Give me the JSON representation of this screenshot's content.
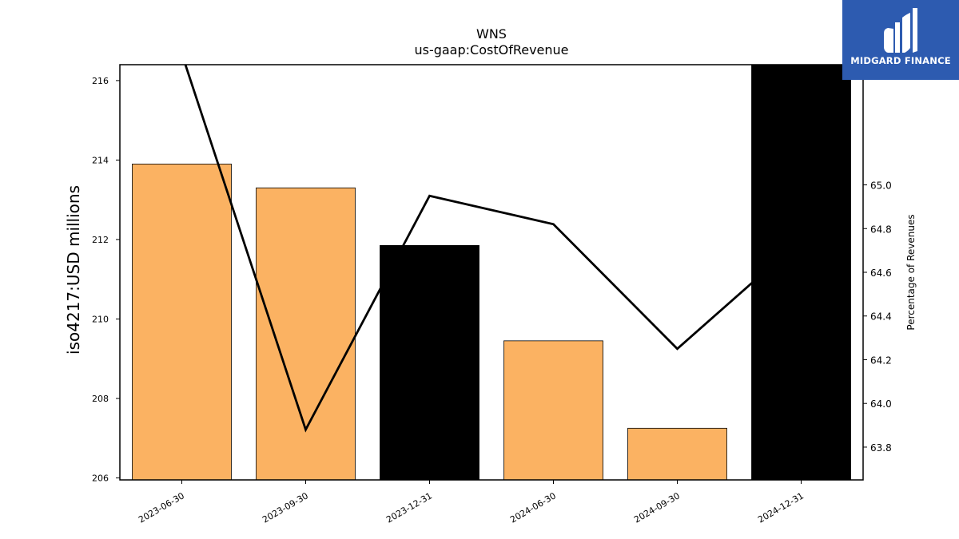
{
  "chart_data": {
    "type": "bar",
    "title": "WNS",
    "subtitle": "us-gaap:CostOfRevenue",
    "categories": [
      "2023-06-30",
      "2023-09-30",
      "2023-12-31",
      "2024-06-30",
      "2024-09-30",
      "2024-12-31"
    ],
    "series": [
      {
        "axis": "left",
        "type": "bar",
        "values": [
          213.9,
          213.3,
          211.85,
          209.45,
          207.25,
          216.45
        ],
        "colors": [
          "#fbb262",
          "#fbb262",
          "#000000",
          "#fbb262",
          "#fbb262",
          "#000000"
        ]
      },
      {
        "axis": "right",
        "type": "line",
        "color": "#000000",
        "values": [
          65.6,
          63.88,
          64.95,
          64.82,
          64.25,
          64.75
        ]
      }
    ],
    "ylabel": "iso4217:USD  millions",
    "y2label": "Percentage of Revenues",
    "ylim": [
      205.95,
      216.4
    ],
    "y2lim": [
      63.65,
      65.55
    ],
    "yticks": [
      206,
      208,
      210,
      212,
      214,
      216
    ],
    "y2ticks": [
      63.8,
      64.0,
      64.2,
      64.4,
      64.6,
      64.8,
      65.0
    ],
    "grid": false
  },
  "logo": {
    "text": "MIDGARD FINANCE",
    "background": "#2d5bb0"
  }
}
